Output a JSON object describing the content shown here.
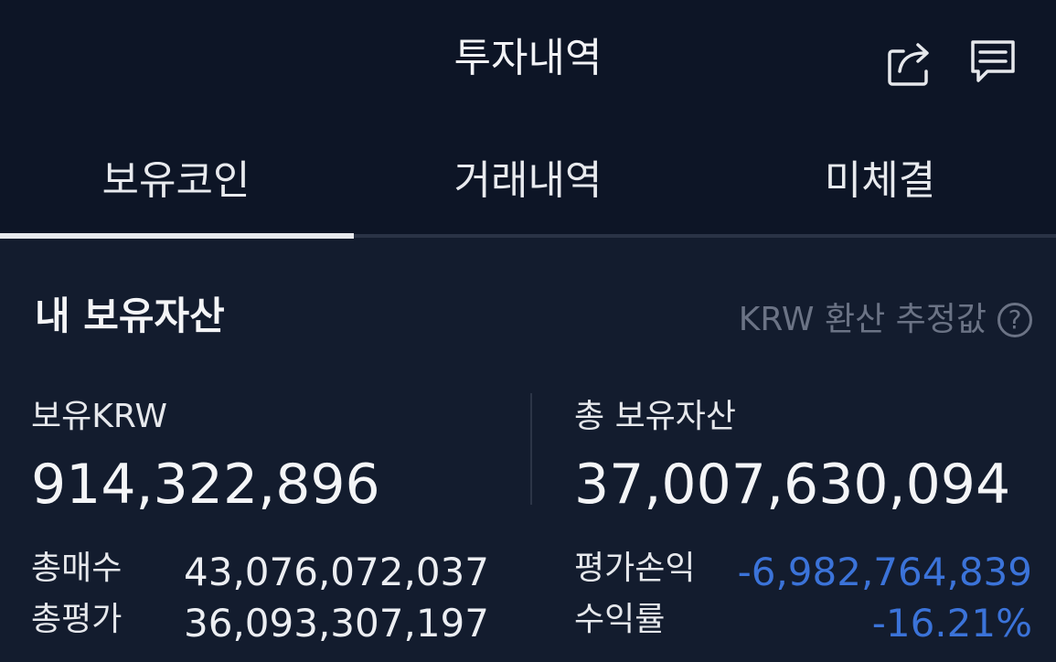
{
  "header": {
    "title": "투자내역",
    "share_icon": "share-icon",
    "comment_icon": "comment-icon"
  },
  "tabs": [
    {
      "label": "보유코인",
      "active": true
    },
    {
      "label": "거래내역",
      "active": false
    },
    {
      "label": "미체결",
      "active": false
    }
  ],
  "assets": {
    "section_title": "내 보유자산",
    "estimate_note": "KRW 환산 추정값",
    "help_glyph": "?",
    "krw_label": "보유KRW",
    "krw_value": "914,322,896",
    "total_label": "총 보유자산",
    "total_value": "37,007,630,094",
    "buy_label": "총매수",
    "buy_value": "43,076,072,037",
    "eval_label": "총평가",
    "eval_value": "36,093,307,197",
    "pnl_label": "평가손익",
    "pnl_value": "-6,982,764,839",
    "rate_label": "수익률",
    "rate_value": "-16.21%"
  },
  "colors": {
    "background": "#131c2e",
    "header_background": "#0d1526",
    "negative": "#3b73d9",
    "muted": "#6b7385"
  }
}
